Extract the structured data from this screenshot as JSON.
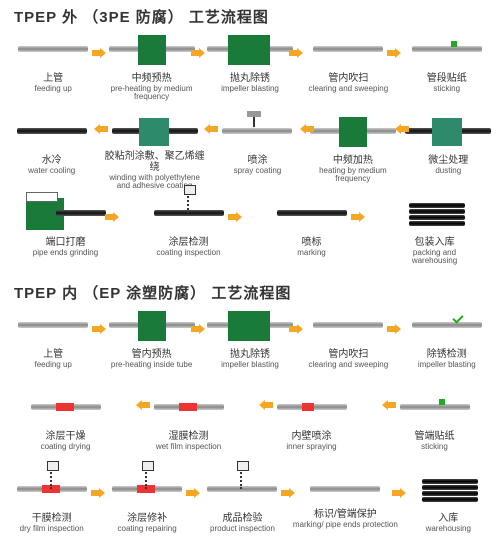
{
  "arrow_color": "#f5a623",
  "colors": {
    "green": "#1a7a3a",
    "teal": "#2d8a6a",
    "red": "#e33",
    "pipe_light": "#bbb",
    "pipe_dark": "#222"
  },
  "section1": {
    "title": "TPEP 外 （3PE 防腐） 工艺流程图",
    "rows": [
      [
        {
          "cn": "上管",
          "en": "feeding up",
          "ic": "pipe"
        },
        {
          "cn": "中频预热",
          "en": "pre-heating by medium frequency",
          "ic": "green"
        },
        {
          "cn": "抛丸除锈",
          "en": "impeller blasting",
          "ic": "greenw"
        },
        {
          "cn": "管内吹扫",
          "en": "clearing and sweeping",
          "ic": "pipe"
        },
        {
          "cn": "管段贴纸",
          "en": "sticking",
          "ic": "pipe-dot"
        }
      ],
      [
        {
          "cn": "水冷",
          "en": "water cooling",
          "ic": "dark"
        },
        {
          "cn": "胶粘剂涂敷、聚乙烯缠绕",
          "en": "winding with polyethylene and adhesive coating",
          "ic": "teal",
          "ml": true
        },
        {
          "cn": "喷涂",
          "en": "spray coating",
          "ic": "pipe-spray"
        },
        {
          "cn": "中频加热",
          "en": "heating by medium frequency",
          "ic": "green"
        },
        {
          "cn": "微尘处理",
          "en": "dusting",
          "ic": "teal"
        }
      ],
      [
        {
          "cn": "端口打磨",
          "en": "pipe ends grinding",
          "ic": "grinder"
        },
        {
          "cn": "涂层检测",
          "en": "coating inspection",
          "ic": "dark-spring"
        },
        {
          "cn": "喷标",
          "en": "marking",
          "ic": "dark"
        },
        {
          "cn": "包装入库",
          "en": "packing and warehousing",
          "ic": "bundle"
        }
      ]
    ]
  },
  "section2": {
    "title": "TPEP 内 （EP 涂塑防腐） 工艺流程图",
    "rows": [
      [
        {
          "cn": "上管",
          "en": "feeding up",
          "ic": "pipe"
        },
        {
          "cn": "管内预热",
          "en": "pre-heating inside tube",
          "ic": "green"
        },
        {
          "cn": "抛丸除锈",
          "en": "impeller blasting",
          "ic": "greenw"
        },
        {
          "cn": "管内吹扫",
          "en": "clearing and sweeping",
          "ic": "pipe"
        },
        {
          "cn": "除锈检测",
          "en": "impeller blasting",
          "ic": "pipe-tick"
        }
      ],
      [
        {
          "cn": "涂层干燥",
          "en": "coating drying",
          "ic": "red"
        },
        {
          "cn": "湿膜检测",
          "en": "wet film inspection",
          "ic": "red"
        },
        {
          "cn": "内壁喷涂",
          "en": "inner spraying",
          "ic": "red-sm"
        },
        {
          "cn": "管端贴纸",
          "en": "sticking",
          "ic": "pipe-dot"
        }
      ],
      [
        {
          "cn": "干膜检测",
          "en": "dry film inspection",
          "ic": "red-spring"
        },
        {
          "cn": "涂层修补",
          "en": "coating repairing",
          "ic": "red-spring"
        },
        {
          "cn": "成品检验",
          "en": "product inspection",
          "ic": "pipe-spring"
        },
        {
          "cn": "标识/管端保护",
          "en": "marking/ pipe ends protection",
          "ic": "pipe",
          "ml": true
        },
        {
          "cn": "入库",
          "en": "warehousing",
          "ic": "bundle"
        }
      ]
    ]
  }
}
